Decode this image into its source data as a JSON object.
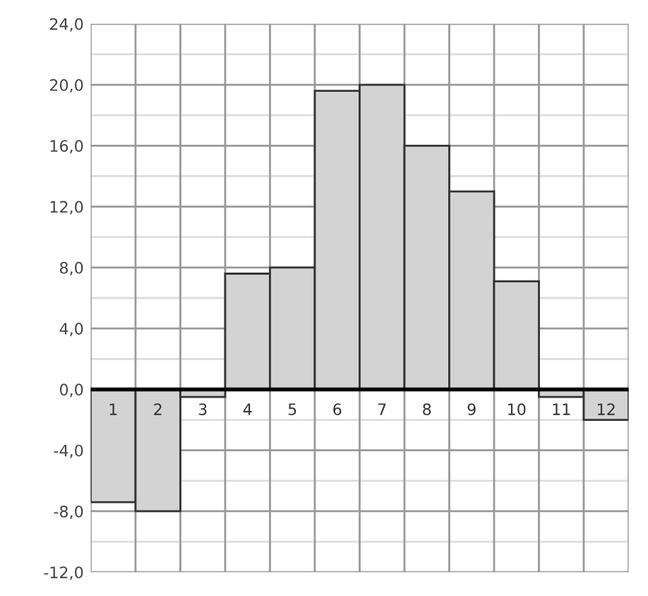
{
  "chart_data": {
    "type": "bar",
    "categories": [
      "1",
      "2",
      "3",
      "4",
      "5",
      "6",
      "7",
      "8",
      "9",
      "10",
      "11",
      "12"
    ],
    "values": [
      -7.4,
      -8.0,
      -0.5,
      7.6,
      8.0,
      19.6,
      20.0,
      16.0,
      13.0,
      7.1,
      -0.5,
      -2.0
    ],
    "color": "#d3d3d3",
    "ylim": [
      -12,
      24
    ],
    "yticks": [
      {
        "value": -12,
        "label": "-12,0"
      },
      {
        "value": -8,
        "label": "-8,0"
      },
      {
        "value": -4,
        "label": "-4,0"
      },
      {
        "value": 0,
        "label": "0,0"
      },
      {
        "value": 4,
        "label": "4,0"
      },
      {
        "value": 8,
        "label": "8,0"
      },
      {
        "value": 12,
        "label": "12,0"
      },
      {
        "value": 16,
        "label": "16,0"
      },
      {
        "value": 20,
        "label": "20,0"
      },
      {
        "value": 24,
        "label": "24,0"
      }
    ],
    "grid": true
  }
}
